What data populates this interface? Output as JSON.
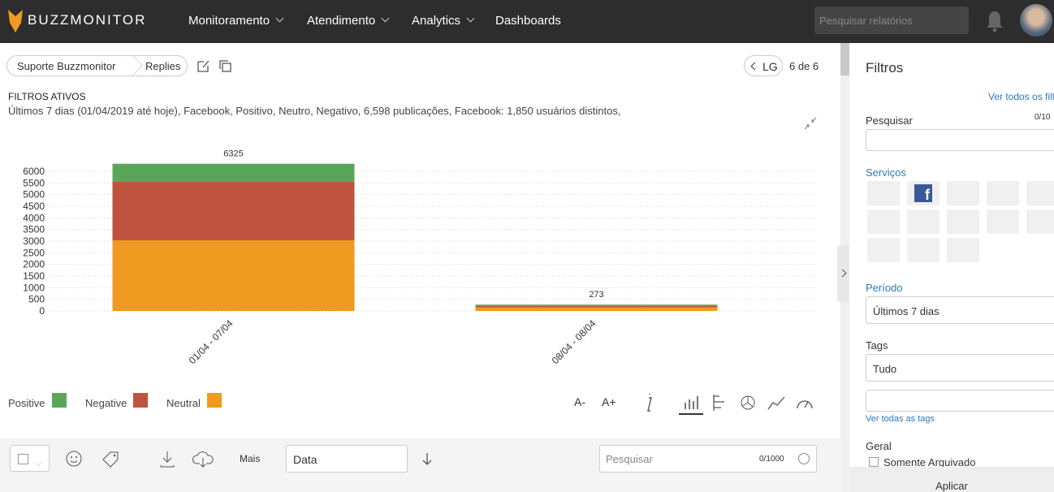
{
  "nav": {
    "brand": "BUZZMONITOR",
    "menu": [
      "Monitoramento",
      "Atendimento",
      "Analytics",
      "Dashboards"
    ],
    "search_placeholder": "Pesquisar relatórios"
  },
  "breadcrumb": [
    "Suporte Buzzmonitor",
    "Replies"
  ],
  "pager": {
    "prev": "LG",
    "count": "6 de 6"
  },
  "filters": {
    "heading": "FILTROS ATIVOS",
    "text": "Últimos 7 dias (01/04/2019 até hoje), Facebook, Positivo, Neutro, Negativo, 6,598 publicações, Facebook: 1,850 usuários distintos,"
  },
  "chart_data": {
    "type": "stacked_bar",
    "categories": [
      "01/04 - 07/04",
      "08/04 - 08/04"
    ],
    "series": [
      {
        "name": "Neutral",
        "color": "#ef9a20",
        "values": [
          3035,
          150
        ]
      },
      {
        "name": "Negative",
        "color": "#c0533f",
        "values": [
          2510,
          70
        ]
      },
      {
        "name": "Positive",
        "color": "#5ba55a",
        "values": [
          780,
          53
        ]
      }
    ],
    "legend_order": [
      "Positive",
      "Negative",
      "Neutral"
    ],
    "totals": [
      6325,
      273
    ],
    "ylim": [
      0,
      6500
    ],
    "yticks": [
      0,
      500,
      1000,
      1500,
      2000,
      2500,
      3000,
      3500,
      4000,
      4500,
      5000,
      5500,
      6000
    ],
    "grid": true
  },
  "chart_tools": [
    "A-",
    "A+"
  ],
  "toolbar": {
    "more": "Mais",
    "sort": "Data",
    "search_placeholder": "Pesquisar",
    "search_count": "0/1000"
  },
  "sidebar": {
    "title": "Filtros",
    "see_all": "Ver todos os filt",
    "search_label": "Pesquisar",
    "search_count": "0/10",
    "services_label": "Serviços",
    "period_label": "Período",
    "period_value": "Últimos 7 dias",
    "tags_label": "Tags",
    "tags_value": "Tudo",
    "see_tags": "Ver todas as tags",
    "general_label": "Geral",
    "archived": "Somente Arquivado",
    "apply": "Aplicar"
  }
}
